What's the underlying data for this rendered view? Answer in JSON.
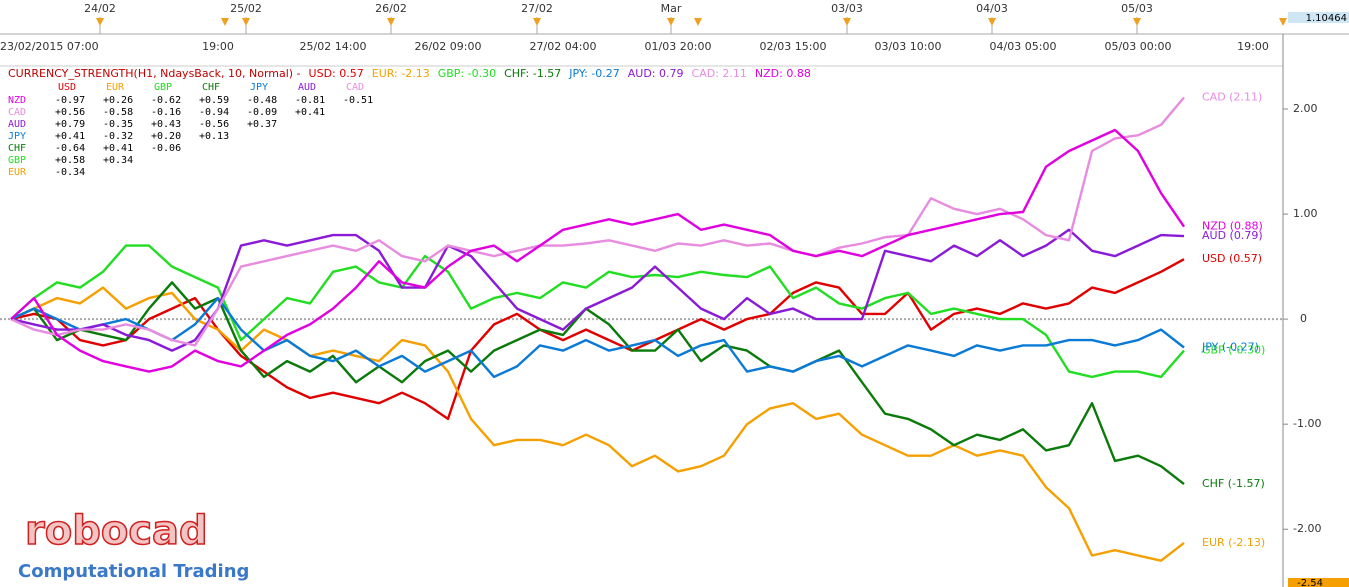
{
  "chart_data": {
    "type": "line",
    "title": "CURRENCY_STRENGTH(H1, NdaysBack, 10, Normal) -",
    "categories": [
      "23/02/2015 07:00",
      null,
      null,
      null,
      null,
      null,
      null,
      null,
      null,
      "19:00",
      null,
      null,
      null,
      null,
      "25/02 14:00",
      null,
      null,
      null,
      null,
      "26/02 09:00",
      null,
      null,
      null,
      null,
      "27/02 04:00",
      null,
      null,
      null,
      null,
      "01/03 20:00",
      null,
      null,
      null,
      null,
      "02/03 15:00",
      null,
      null,
      null,
      null,
      "03/03 10:00",
      null,
      null,
      null,
      null,
      "04/03 05:00",
      null,
      null,
      null,
      null,
      "05/03 00:00",
      null,
      null,
      null,
      null,
      "19:00"
    ],
    "series": [
      {
        "name": "USD",
        "color": "#e00000",
        "legend_label": "USD: 0.57",
        "end_label": "USD (0.57)",
        "values": [
          0,
          0.05,
          0,
          -0.2,
          -0.25,
          -0.2,
          0,
          0.1,
          0.2,
          -0.1,
          -0.35,
          -0.5,
          -0.65,
          -0.75,
          -0.7,
          -0.75,
          -0.8,
          -0.7,
          -0.8,
          -0.95,
          -0.3,
          -0.05,
          0.05,
          -0.1,
          -0.2,
          -0.1,
          -0.2,
          -0.3,
          -0.2,
          -0.1,
          0,
          -0.1,
          0,
          0.05,
          0.25,
          0.35,
          0.3,
          0.05,
          0.05,
          0.25,
          -0.1,
          0.05,
          0.1,
          0.05,
          0.15,
          0.1,
          0.15,
          0.3,
          0.25,
          0.35,
          0.45,
          0.57,
          null,
          null,
          null
        ]
      },
      {
        "name": "EUR",
        "color": "#f5a000",
        "legend_label": "EUR: -2.13",
        "end_label": "EUR (-2.13)",
        "values": [
          0,
          0.1,
          0.2,
          0.15,
          0.3,
          0.1,
          0.2,
          0.25,
          0,
          -0.1,
          -0.3,
          -0.1,
          -0.2,
          -0.35,
          -0.3,
          -0.35,
          -0.4,
          -0.2,
          -0.25,
          -0.5,
          -0.95,
          -1.2,
          -1.15,
          -1.15,
          -1.2,
          -1.1,
          -1.2,
          -1.4,
          -1.3,
          -1.45,
          -1.4,
          -1.3,
          -1,
          -0.85,
          -0.8,
          -0.95,
          -0.9,
          -1.1,
          -1.2,
          -1.3,
          -1.3,
          -1.2,
          -1.3,
          -1.25,
          -1.3,
          -1.6,
          -1.8,
          -2.25,
          -2.2,
          -2.25,
          -2.3,
          -2.13,
          null,
          null,
          null
        ]
      },
      {
        "name": "GBP",
        "color": "#22dd22",
        "legend_label": "GBP: -0.30",
        "end_label": "GBP (-0.30)",
        "values": [
          0,
          0.2,
          0.35,
          0.3,
          0.45,
          0.7,
          0.7,
          0.5,
          0.4,
          0.3,
          -0.2,
          0,
          0.2,
          0.15,
          0.45,
          0.5,
          0.35,
          0.3,
          0.6,
          0.45,
          0.1,
          0.2,
          0.25,
          0.2,
          0.35,
          0.3,
          0.45,
          0.4,
          0.42,
          0.4,
          0.45,
          0.42,
          0.4,
          0.5,
          0.2,
          0.3,
          0.15,
          0.1,
          0.2,
          0.25,
          0.05,
          0.1,
          0.05,
          0,
          0,
          -0.15,
          -0.5,
          -0.55,
          -0.5,
          -0.5,
          -0.55,
          -0.3,
          null,
          null,
          null
        ]
      },
      {
        "name": "CHF",
        "color": "#0a7a0a",
        "legend_label": "CHF: -1.57",
        "end_label": "CHF (-1.57)",
        "values": [
          0,
          0.1,
          -0.2,
          -0.1,
          -0.15,
          -0.2,
          0.1,
          0.35,
          0.1,
          0.2,
          -0.3,
          -0.55,
          -0.4,
          -0.5,
          -0.35,
          -0.6,
          -0.45,
          -0.6,
          -0.4,
          -0.3,
          -0.5,
          -0.3,
          -0.2,
          -0.1,
          -0.15,
          0.1,
          -0.05,
          -0.3,
          -0.3,
          -0.1,
          -0.4,
          -0.25,
          -0.3,
          -0.45,
          -0.5,
          -0.4,
          -0.3,
          -0.6,
          -0.9,
          -0.95,
          -1.05,
          -1.2,
          -1.1,
          -1.15,
          -1.05,
          -1.25,
          -1.2,
          -0.8,
          -1.35,
          -1.3,
          -1.4,
          -1.57,
          null,
          null,
          null
        ]
      },
      {
        "name": "JPY",
        "color": "#0a7ad6",
        "legend_label": "JPY: -0.27",
        "end_label": "JPY (-0.27)",
        "values": [
          0,
          0.1,
          0,
          -0.1,
          -0.05,
          0,
          -0.1,
          -0.2,
          -0.05,
          0.2,
          -0.1,
          -0.3,
          -0.2,
          -0.35,
          -0.4,
          -0.3,
          -0.45,
          -0.35,
          -0.5,
          -0.4,
          -0.3,
          -0.55,
          -0.45,
          -0.25,
          -0.3,
          -0.2,
          -0.3,
          -0.25,
          -0.2,
          -0.35,
          -0.25,
          -0.2,
          -0.5,
          -0.45,
          -0.5,
          -0.4,
          -0.35,
          -0.45,
          -0.35,
          -0.25,
          -0.3,
          -0.35,
          -0.25,
          -0.3,
          -0.25,
          -0.25,
          -0.2,
          -0.2,
          -0.25,
          -0.2,
          -0.1,
          -0.27,
          null,
          null,
          null
        ]
      },
      {
        "name": "AUD",
        "color": "#8a1ad6",
        "legend_label": "AUD: 0.79",
        "end_label": "AUD (0.79)",
        "values": [
          0,
          -0.05,
          -0.1,
          -0.1,
          -0.05,
          -0.15,
          -0.2,
          -0.3,
          -0.2,
          0.1,
          0.7,
          0.75,
          0.7,
          0.75,
          0.8,
          0.8,
          0.65,
          0.3,
          0.3,
          0.7,
          0.6,
          0.35,
          0.1,
          0,
          -0.1,
          0.1,
          0.2,
          0.3,
          0.5,
          0.3,
          0.1,
          0,
          0.2,
          0.05,
          0.1,
          0,
          0,
          0,
          0.65,
          0.6,
          0.55,
          0.7,
          0.6,
          0.75,
          0.6,
          0.7,
          0.85,
          0.65,
          0.6,
          0.7,
          0.8,
          0.79,
          null,
          null,
          null
        ]
      },
      {
        "name": "CAD",
        "color": "#e88ce0",
        "legend_label": "CAD: 2.11",
        "end_label": "CAD (2.11)",
        "values": [
          0,
          -0.1,
          -0.15,
          -0.1,
          -0.1,
          -0.05,
          -0.1,
          -0.2,
          -0.25,
          0.1,
          0.5,
          0.55,
          0.6,
          0.65,
          0.7,
          0.65,
          0.75,
          0.6,
          0.55,
          0.7,
          0.65,
          0.6,
          0.65,
          0.7,
          0.7,
          0.72,
          0.75,
          0.7,
          0.65,
          0.72,
          0.7,
          0.75,
          0.7,
          0.72,
          0.65,
          0.6,
          0.68,
          0.72,
          0.78,
          0.8,
          1.15,
          1.05,
          1,
          1.05,
          0.95,
          0.8,
          0.75,
          1.6,
          1.72,
          1.75,
          1.85,
          2.11,
          null,
          null,
          null
        ]
      },
      {
        "name": "NZD",
        "color": "#e000e0",
        "legend_label": "NZD: 0.88",
        "end_label": "NZD (0.88)",
        "values": [
          0,
          0.2,
          -0.15,
          -0.3,
          -0.4,
          -0.45,
          -0.5,
          -0.45,
          -0.3,
          -0.4,
          -0.45,
          -0.3,
          -0.15,
          -0.05,
          0.1,
          0.3,
          0.55,
          0.35,
          0.3,
          0.5,
          0.65,
          0.7,
          0.55,
          0.7,
          0.85,
          0.9,
          0.95,
          0.9,
          0.95,
          1,
          0.85,
          0.9,
          0.85,
          0.8,
          0.65,
          0.6,
          0.65,
          0.6,
          0.7,
          0.8,
          0.85,
          0.9,
          0.95,
          1,
          1.02,
          1.45,
          1.6,
          1.7,
          1.8,
          1.6,
          1.2,
          0.88,
          null,
          null,
          null
        ]
      }
    ],
    "ylim": [
      -2.55,
      2.4
    ],
    "yticks": [
      {
        "value": 2,
        "label": "2.00"
      },
      {
        "value": 1,
        "label": "1.00"
      },
      0,
      {
        "value": -1,
        "label": "-1.00"
      },
      {
        "value": -2,
        "label": "-2.00"
      }
    ],
    "zero_line": true,
    "matrix": {
      "columns": [
        "USD",
        "EUR",
        "GBP",
        "CHF",
        "JPY",
        "AUD",
        "CAD"
      ],
      "rows": [
        {
          "label": "NZD",
          "cells": [
            "-0.97",
            "+0.26",
            "-0.62",
            "+0.59",
            "-0.48",
            "-0.81",
            "-0.51"
          ]
        },
        {
          "label": "CAD",
          "cells": [
            "+0.56",
            "-0.58",
            "-0.16",
            "-0.94",
            "-0.09",
            "+0.41"
          ]
        },
        {
          "label": "AUD",
          "cells": [
            "+0.79",
            "-0.35",
            "+0.43",
            "-0.56",
            "+0.37"
          ]
        },
        {
          "label": "JPY",
          "cells": [
            "+0.41",
            "-0.32",
            "+0.20",
            "+0.13"
          ]
        },
        {
          "label": "CHF",
          "cells": [
            "-0.64",
            "+0.41",
            "-0.06"
          ]
        },
        {
          "label": "GBP",
          "cells": [
            "+0.58",
            "+0.34"
          ]
        },
        {
          "label": "EUR",
          "cells": [
            "-0.34"
          ]
        }
      ]
    },
    "top_dates": [
      "24/02",
      "25/02",
      "26/02",
      "27/02",
      "Mar",
      "03/03",
      "04/03",
      "05/03"
    ],
    "price_labels": {
      "top": "1.10464",
      "bottom": "-2.54"
    }
  },
  "watermark": {
    "logo": "robocad",
    "tagline": "Computational Trading"
  }
}
